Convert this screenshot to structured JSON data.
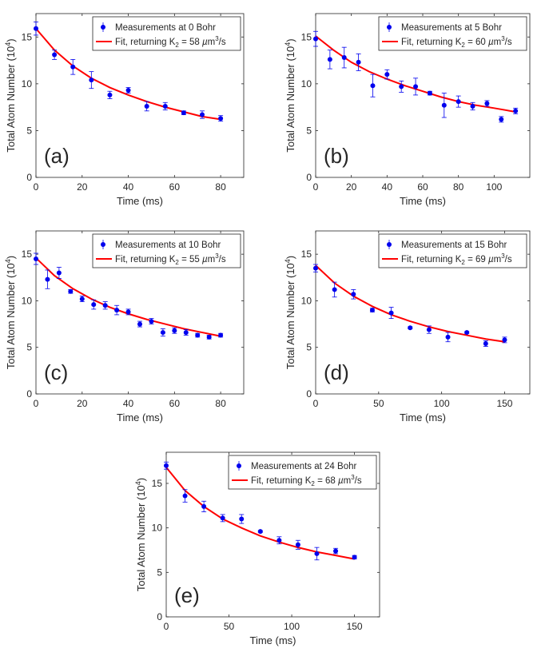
{
  "figure": {
    "colors": {
      "data": "#0000ee",
      "fit": "#ff0000",
      "axis": "#262626",
      "background": "#ffffff"
    }
  },
  "chart_data": [
    {
      "type": "scatter",
      "panel": "(a)",
      "xlabel": "Time (ms)",
      "ylabel": "Total Atom Number (10^4)",
      "xlim": [
        0,
        90
      ],
      "ylim": [
        0,
        17.5
      ],
      "xticks": [
        0,
        20,
        40,
        60,
        80
      ],
      "yticks": [
        0,
        5,
        10,
        15
      ],
      "legend_placement": "top-right",
      "series": [
        {
          "name": "Measurements at 0 Bohr",
          "kind": "points-errorbars",
          "x": [
            0,
            8,
            16,
            24,
            32,
            40,
            48,
            56,
            64,
            72,
            80
          ],
          "y": [
            15.9,
            13.1,
            11.8,
            10.4,
            8.8,
            9.3,
            7.6,
            7.6,
            6.9,
            6.7,
            6.3
          ],
          "err": [
            0.7,
            0.5,
            0.8,
            0.9,
            0.4,
            0.3,
            0.5,
            0.4,
            0.2,
            0.4,
            0.3
          ]
        },
        {
          "name": "Fit, returning K₂ = 58 µm³/s",
          "kind": "line",
          "x": [
            0,
            8,
            16,
            24,
            32,
            40,
            48,
            56,
            64,
            72,
            80
          ],
          "y": [
            15.9,
            13.6,
            11.9,
            10.6,
            9.6,
            8.8,
            8.1,
            7.5,
            7.0,
            6.5,
            6.2
          ]
        }
      ],
      "legend_prefix": "Fit, returning K",
      "legend_k": "58"
    },
    {
      "type": "scatter",
      "panel": "(b)",
      "xlabel": "Time (ms)",
      "ylabel": "Total Atom Number (10^4)",
      "xlim": [
        0,
        120
      ],
      "ylim": [
        0,
        17.5
      ],
      "xticks": [
        0,
        20,
        40,
        60,
        80,
        100
      ],
      "yticks": [
        0,
        5,
        10,
        15
      ],
      "legend_placement": "top-right",
      "series": [
        {
          "name": "Measurements at 5 Bohr",
          "kind": "points-errorbars",
          "x": [
            0,
            8,
            16,
            24,
            32,
            40,
            48,
            56,
            64,
            72,
            80,
            88,
            96,
            104,
            112
          ],
          "y": [
            14.8,
            12.6,
            12.8,
            12.3,
            9.8,
            11.0,
            9.7,
            9.7,
            9.0,
            7.7,
            8.1,
            7.6,
            7.9,
            6.2,
            7.1
          ],
          "err": [
            0.8,
            1.0,
            1.1,
            0.9,
            1.2,
            0.5,
            0.6,
            0.9,
            0.2,
            1.3,
            0.6,
            0.4,
            0.3,
            0.3,
            0.3
          ]
        },
        {
          "name": "Fit, returning K₂ = 60 µm³/s",
          "kind": "line",
          "x": [
            0,
            10,
            20,
            30,
            40,
            50,
            60,
            70,
            80,
            90,
            100,
            112
          ],
          "y": [
            15.1,
            13.6,
            12.3,
            11.3,
            10.5,
            9.8,
            9.2,
            8.6,
            8.1,
            7.7,
            7.4,
            7.0
          ]
        }
      ],
      "legend_prefix": "Fit, returning K",
      "legend_k": "60"
    },
    {
      "type": "scatter",
      "panel": "(c)",
      "xlabel": "Time (ms)",
      "ylabel": "Total Atom Number (10^4)",
      "xlim": [
        0,
        90
      ],
      "ylim": [
        0,
        17.5
      ],
      "xticks": [
        0,
        20,
        40,
        60,
        80
      ],
      "yticks": [
        0,
        5,
        10,
        15
      ],
      "legend_placement": "top-right",
      "series": [
        {
          "name": "Measurements at 10 Bohr",
          "kind": "points-errorbars",
          "x": [
            0,
            5,
            10,
            15,
            20,
            25,
            30,
            35,
            40,
            45,
            50,
            55,
            60,
            65,
            70,
            75,
            80
          ],
          "y": [
            14.5,
            12.3,
            13.0,
            11.0,
            10.2,
            9.6,
            9.5,
            9.0,
            8.8,
            7.5,
            7.8,
            6.6,
            6.8,
            6.6,
            6.3,
            6.1,
            6.3
          ],
          "err": [
            0.6,
            1.0,
            0.6,
            0.2,
            0.3,
            0.5,
            0.4,
            0.5,
            0.3,
            0.3,
            0.3,
            0.4,
            0.3,
            0.3,
            0.2,
            0.2,
            0.2
          ]
        },
        {
          "name": "Fit, returning K₂ = 55 µm³/s",
          "kind": "line",
          "x": [
            0,
            8,
            16,
            24,
            32,
            40,
            48,
            56,
            64,
            72,
            80
          ],
          "y": [
            14.6,
            12.7,
            11.3,
            10.2,
            9.3,
            8.6,
            8.0,
            7.5,
            7.0,
            6.6,
            6.2
          ]
        }
      ],
      "legend_prefix": "Fit, returning K",
      "legend_k": "55"
    },
    {
      "type": "scatter",
      "panel": "(d)",
      "xlabel": "Time (ms)",
      "ylabel": "Total Atom Number (10^4)",
      "xlim": [
        0,
        170
      ],
      "ylim": [
        0,
        17.5
      ],
      "xticks": [
        0,
        50,
        100,
        150
      ],
      "yticks": [
        0,
        5,
        10,
        15
      ],
      "legend_placement": "top-right",
      "series": [
        {
          "name": "Measurements at 15 Bohr",
          "kind": "points-errorbars",
          "x": [
            0,
            15,
            30,
            45,
            60,
            75,
            90,
            105,
            120,
            135,
            150
          ],
          "y": [
            13.5,
            11.2,
            10.7,
            9.0,
            8.7,
            7.1,
            6.9,
            6.1,
            6.6,
            5.4,
            5.8
          ],
          "err": [
            0.4,
            0.8,
            0.5,
            0.2,
            0.6,
            0.1,
            0.4,
            0.5,
            0.1,
            0.3,
            0.3
          ]
        },
        {
          "name": "Fit, returning K₂ = 69 µm³/s",
          "kind": "line",
          "x": [
            0,
            15,
            30,
            45,
            60,
            75,
            90,
            105,
            120,
            135,
            150
          ],
          "y": [
            13.8,
            11.9,
            10.5,
            9.4,
            8.5,
            7.8,
            7.2,
            6.7,
            6.3,
            5.9,
            5.6
          ]
        }
      ],
      "legend_prefix": "Fit, returning K",
      "legend_k": "69"
    },
    {
      "type": "scatter",
      "panel": "(e)",
      "xlabel": "Time (ms)",
      "ylabel": "Total Atom Number (10^4)",
      "xlim": [
        0,
        170
      ],
      "ylim": [
        0,
        18.5
      ],
      "xticks": [
        0,
        50,
        100,
        150
      ],
      "yticks": [
        0,
        5,
        10,
        15
      ],
      "legend_placement": "top-right",
      "series": [
        {
          "name": "Measurements at 24 Bohr",
          "kind": "points-errorbars",
          "x": [
            0,
            15,
            30,
            45,
            60,
            75,
            90,
            105,
            120,
            135,
            150
          ],
          "y": [
            17.0,
            13.6,
            12.4,
            11.1,
            11.0,
            9.6,
            8.6,
            8.1,
            7.1,
            7.4,
            6.7
          ],
          "err": [
            0.4,
            0.7,
            0.6,
            0.4,
            0.5,
            0.1,
            0.4,
            0.5,
            0.7,
            0.3,
            0.2
          ]
        },
        {
          "name": "Fit, returning K₂ = 68 µm³/s",
          "kind": "line",
          "x": [
            0,
            15,
            30,
            45,
            60,
            75,
            90,
            105,
            120,
            135,
            150
          ],
          "y": [
            16.8,
            14.2,
            12.4,
            11.0,
            10.0,
            9.1,
            8.4,
            7.8,
            7.3,
            6.9,
            6.5
          ]
        }
      ],
      "legend_prefix": "Fit, returning K",
      "legend_k": "68"
    }
  ]
}
